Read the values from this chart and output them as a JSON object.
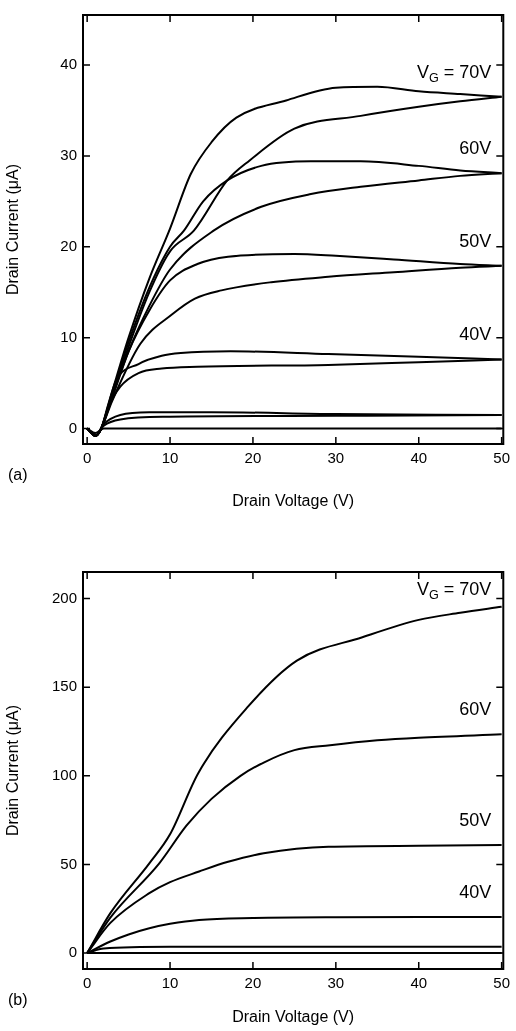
{
  "chart_data": [
    {
      "type": "line",
      "xlabel": "Drain Voltage (V)",
      "ylabel": "Drain Current (μA)",
      "xlim": [
        -0.5,
        50.2
      ],
      "ylim": [
        -1.7,
        45.5
      ],
      "xticks": [
        0,
        10,
        20,
        30,
        40,
        50
      ],
      "yticks": [
        0,
        10,
        20,
        30,
        40
      ],
      "legend": "right",
      "marker": "none",
      "line_style": "solid",
      "annotations": [
        "(a)"
      ],
      "series": [
        {
          "name": "V$_{G}$ = 70V",
          "color": "#000000",
          "x": [
            0,
            1,
            1.7,
            3,
            5,
            7.5,
            10,
            12.5,
            15,
            18,
            24,
            30,
            35,
            40,
            45,
            50
          ],
          "values": [
            0,
            -0.8,
            0,
            4,
            10,
            16.5,
            22,
            28,
            31.5,
            34.2,
            36.1,
            37.5,
            37.6,
            37.1,
            36.8,
            36.5
          ]
        },
        {
          "color": "#000000",
          "x": [
            0,
            1,
            1.7,
            3,
            5,
            7.5,
            10,
            12.9,
            16.9,
            19.6,
            25,
            33,
            40,
            45,
            50
          ],
          "values": [
            0,
            -0.8,
            0,
            3.6,
            9,
            15,
            19.5,
            21.8,
            27.3,
            29.5,
            33,
            34.4,
            35.4,
            36,
            36.5
          ]
        },
        {
          "name": "60V",
          "color": "#000000",
          "x": [
            0,
            1,
            1.7,
            3,
            5,
            7.5,
            10,
            11.7,
            14,
            16.9,
            21,
            27,
            33,
            40,
            45,
            50
          ],
          "values": [
            0,
            -0.8,
            0,
            3.8,
            9.5,
            15.5,
            20,
            21.8,
            25,
            27.3,
            28.9,
            29.4,
            29.4,
            28.9,
            28.4,
            28.1
          ]
        },
        {
          "color": "#000000",
          "x": [
            0,
            1,
            1.7,
            3,
            5,
            7.5,
            10,
            15.3,
            21,
            27,
            33,
            40,
            45,
            50
          ],
          "values": [
            0,
            -0.8,
            0,
            3.3,
            8.5,
            13.5,
            17.5,
            21.8,
            24.4,
            25.8,
            26.6,
            27.3,
            27.8,
            28.1
          ]
        },
        {
          "name": "50V",
          "color": "#000000",
          "x": [
            0,
            1,
            1.7,
            3,
            5,
            7.5,
            10,
            13.3,
            17,
            25,
            30,
            37,
            45,
            50
          ],
          "values": [
            0,
            -0.8,
            0,
            3.5,
            8.5,
            13,
            16.3,
            18.1,
            18.9,
            19.2,
            19,
            18.6,
            18.1,
            17.9
          ]
        },
        {
          "color": "#000000",
          "x": [
            0,
            1,
            1.7,
            3,
            6.4,
            10.3,
            13,
            16.2,
            22.2,
            29.1,
            37,
            45,
            50
          ],
          "values": [
            0,
            -0.8,
            0,
            3,
            9.3,
            12.6,
            14.3,
            15.2,
            16.1,
            16.7,
            17.2,
            17.7,
            17.9
          ]
        },
        {
          "name": "40V",
          "color": "#000000",
          "x": [
            0,
            1,
            1.7,
            2.5,
            3.5,
            6.2,
            9,
            11.3,
            17.3,
            29.1,
            40,
            50
          ],
          "values": [
            0,
            -0.8,
            0,
            2.5,
            5.3,
            7.1,
            8,
            8.3,
            8.5,
            8.2,
            7.9,
            7.6
          ]
        },
        {
          "color": "#000000",
          "x": [
            0,
            1,
            1.7,
            2.5,
            4,
            6.2,
            9,
            13.3,
            29.1,
            40,
            50
          ],
          "values": [
            0,
            -0.8,
            0,
            2.2,
            4.6,
            6.1,
            6.6,
            6.8,
            7,
            7.3,
            7.6
          ]
        },
        {
          "color": "#000000",
          "x": [
            0,
            1,
            2,
            4,
            7.5,
            15,
            30,
            50
          ],
          "values": [
            0,
            -0.8,
            0.5,
            1.5,
            1.8,
            1.8,
            1.6,
            1.5
          ]
        },
        {
          "color": "#000000",
          "x": [
            0,
            1,
            2,
            4,
            10,
            30,
            50
          ],
          "values": [
            0,
            -0.8,
            0.3,
            1,
            1.3,
            1.4,
            1.5
          ]
        },
        {
          "color": "#000000",
          "x": [
            0,
            1,
            2,
            50
          ],
          "values": [
            0,
            -0.5,
            0,
            0
          ]
        }
      ]
    },
    {
      "type": "line",
      "xlabel": "Drain Voltage (V)",
      "ylabel": "Drain Current (μA)",
      "xlim": [
        -0.5,
        50.2
      ],
      "ylim": [
        -9,
        215
      ],
      "xticks": [
        0,
        10,
        20,
        30,
        40,
        50
      ],
      "yticks": [
        0,
        50,
        100,
        150,
        200
      ],
      "legend": "right",
      "marker": "none",
      "line_style": "solid",
      "annotations": [
        "(b)"
      ],
      "series": [
        {
          "name": "V$_{G}$ = 70V",
          "color": "#000000",
          "x": [
            0,
            2.8,
            7.5,
            10,
            13.4,
            19.4,
            25.3,
            33.2,
            40,
            45,
            50
          ],
          "values": [
            0,
            22.5,
            50.6,
            67,
            101.5,
            139,
            165,
            178.2,
            188,
            192,
            195.4
          ]
        },
        {
          "name": "60V",
          "color": "#000000",
          "x": [
            0,
            2.8,
            8.7,
            12,
            15,
            18.5,
            21.3,
            25,
            29.3,
            35,
            40,
            50
          ],
          "values": [
            0,
            20,
            50.6,
            72,
            87,
            100,
            107.5,
            114.5,
            117.2,
            120,
            121.5,
            123.4
          ]
        },
        {
          "name": "50V",
          "color": "#000000",
          "x": [
            0,
            2.8,
            7.5,
            10,
            13.5,
            17,
            21.3,
            29.1,
            40,
            50
          ],
          "values": [
            0,
            17,
            33.8,
            40,
            46,
            51.5,
            56.3,
            60,
            60.5,
            61
          ]
        },
        {
          "name": "40V",
          "color": "#000000",
          "x": [
            0,
            2.8,
            5,
            7.5,
            10,
            13.5,
            20,
            30,
            50
          ],
          "values": [
            0,
            6.5,
            10.5,
            14,
            16.5,
            18.7,
            19.8,
            20.2,
            20.3
          ]
        },
        {
          "color": "#000000",
          "x": [
            0,
            2,
            10,
            50
          ],
          "values": [
            0,
            2.5,
            3.5,
            3.5
          ]
        },
        {
          "color": "#000000",
          "x": [
            0,
            50
          ],
          "values": [
            0,
            0
          ]
        }
      ]
    }
  ]
}
